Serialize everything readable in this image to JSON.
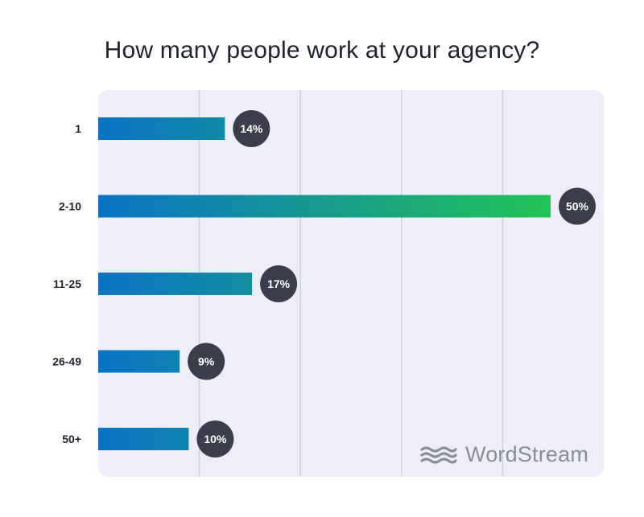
{
  "chart_data": {
    "type": "bar",
    "orientation": "horizontal",
    "title": "How many people work at your agency?",
    "categories": [
      "1",
      "2-10",
      "11-25",
      "26-49",
      "50+"
    ],
    "values": [
      14,
      50,
      17,
      9,
      10
    ],
    "value_labels": [
      "14%",
      "50%",
      "17%",
      "9%",
      "10%"
    ],
    "xlim": [
      0,
      56
    ],
    "grid": true,
    "legend": "none",
    "colors": {
      "gradient_start": "#0a73c6",
      "gradient_end": "#22c455",
      "label_bubble": "#3a3d4a",
      "panel": "#eeeefa",
      "gridline": "#cfd0de"
    }
  },
  "brand": {
    "name": "WordStream",
    "icon": "wave-logo-icon"
  }
}
